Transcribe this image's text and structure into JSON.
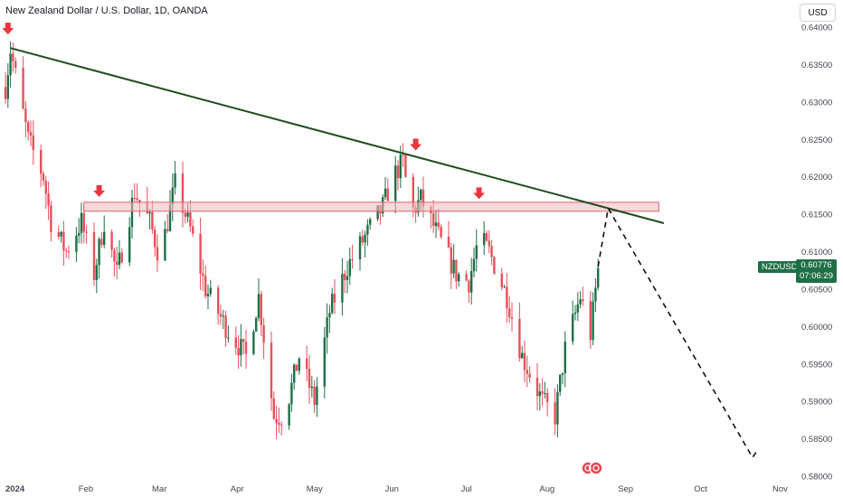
{
  "header": {
    "title": "New Zealand Dollar / U.S. Dollar, 1D, OANDA",
    "currency_button": "USD"
  },
  "price_badge": {
    "symbol": "NZDUSD",
    "price": "0.60776",
    "countdown": "07:06:29"
  },
  "colors": {
    "up": "#1f6f46",
    "down": "#e8505b",
    "trendline": "#1e4d1e",
    "zone_fill": "#f4b9bf",
    "zone_border": "#e06070",
    "arrow": "#e8363f"
  },
  "chart_data": {
    "type": "candlestick",
    "y_ticks": [
      "0.64000",
      "0.63500",
      "0.63000",
      "0.62500",
      "0.62000",
      "0.61500",
      "0.61000",
      "0.60500",
      "0.60000",
      "0.59500",
      "0.59000",
      "0.58500",
      "0.58000"
    ],
    "ylim": [
      0.58,
      0.64
    ],
    "x_ticks": [
      "2024",
      "Feb",
      "Mar",
      "Apr",
      "May",
      "Jun",
      "Jul",
      "Aug",
      "Sep",
      "Oct",
      "Nov"
    ],
    "anchors": [
      [
        "2024-01-01",
        0.632
      ],
      [
        "2024-01-03",
        0.637
      ],
      [
        "2024-01-10",
        0.625
      ],
      [
        "2024-01-16",
        0.62
      ],
      [
        "2024-01-19",
        0.614
      ],
      [
        "2024-01-25",
        0.61
      ],
      [
        "2024-01-31",
        0.614
      ],
      [
        "2024-02-05",
        0.607
      ],
      [
        "2024-02-09",
        0.614
      ],
      [
        "2024-02-14",
        0.607
      ],
      [
        "2024-02-21",
        0.618
      ],
      [
        "2024-02-27",
        0.614
      ],
      [
        "2024-03-02",
        0.609
      ],
      [
        "2024-03-08",
        0.619
      ],
      [
        "2024-03-14",
        0.613
      ],
      [
        "2024-03-20",
        0.605
      ],
      [
        "2024-03-28",
        0.6
      ],
      [
        "2024-04-05",
        0.596
      ],
      [
        "2024-04-10",
        0.604
      ],
      [
        "2024-04-16",
        0.588
      ],
      [
        "2024-04-20",
        0.588
      ],
      [
        "2024-04-26",
        0.596
      ],
      [
        "2024-05-02",
        0.59
      ],
      [
        "2024-05-08",
        0.602
      ],
      [
        "2024-05-15",
        0.608
      ],
      [
        "2024-05-22",
        0.612
      ],
      [
        "2024-05-29",
        0.616
      ],
      [
        "2024-06-02",
        0.62
      ],
      [
        "2024-06-06",
        0.622
      ],
      [
        "2024-06-09",
        0.615
      ],
      [
        "2024-06-13",
        0.617
      ],
      [
        "2024-06-20",
        0.612
      ],
      [
        "2024-06-27",
        0.607
      ],
      [
        "2024-07-02",
        0.606
      ],
      [
        "2024-07-06",
        0.612
      ],
      [
        "2024-07-10",
        0.61
      ],
      [
        "2024-07-17",
        0.604
      ],
      [
        "2024-07-23",
        0.596
      ],
      [
        "2024-07-31",
        0.59
      ],
      [
        "2024-08-05",
        0.588
      ],
      [
        "2024-08-09",
        0.597
      ],
      [
        "2024-08-15",
        0.604
      ],
      [
        "2024-08-19",
        0.599
      ],
      [
        "2024-08-22",
        0.6078
      ]
    ],
    "annotations": {
      "trendline": {
        "from": [
          "2024-01-03",
          0.6372
        ],
        "to": [
          "2024-09-17",
          0.6138
        ]
      },
      "resistance_zone": {
        "x0": "2024-02-01",
        "x1": "2024-09-15",
        "y0": 0.6154,
        "y1": 0.6166
      },
      "projection": [
        [
          "2024-08-22",
          0.608
        ],
        [
          "2024-08-26",
          0.6158
        ],
        [
          "2024-10-22",
          0.5825
        ],
        [
          "2024-10-24",
          0.5835
        ]
      ],
      "arrows": [
        [
          "2024-01-02",
          0.6395
        ],
        [
          "2024-02-07",
          0.6178
        ],
        [
          "2024-06-11",
          0.624
        ],
        [
          "2024-07-06",
          0.6175
        ]
      ]
    }
  }
}
